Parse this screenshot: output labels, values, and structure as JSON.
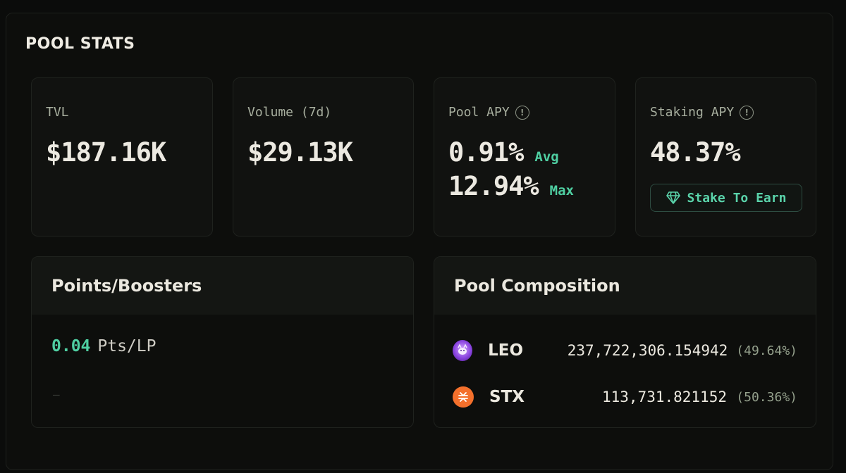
{
  "section_title": "POOL STATS",
  "stats": {
    "tvl": {
      "label": "TVL",
      "value": "$187.16K"
    },
    "volume": {
      "label": "Volume (7d)",
      "value": "$29.13K"
    },
    "pool_apy": {
      "label": "Pool APY",
      "avg_value": "0.91%",
      "avg_tag": "Avg",
      "max_value": "12.94%",
      "max_tag": "Max",
      "info_icon": "info-icon"
    },
    "staking_apy": {
      "label": "Staking APY",
      "value": "48.37%",
      "button_label": "Stake To Earn",
      "button_icon": "gem-icon",
      "info_icon": "info-icon"
    }
  },
  "points": {
    "title": "Points/Boosters",
    "value": "0.04",
    "unit": "Pts/LP",
    "placeholder_mark": "–"
  },
  "composition": {
    "title": "Pool Composition",
    "tokens": [
      {
        "symbol": "LEO",
        "amount": "237,722,306.154942",
        "percent": "(49.64%)",
        "icon": "leo-token-icon"
      },
      {
        "symbol": "STX",
        "amount": "113,731.821152",
        "percent": "(50.36%)",
        "icon": "stx-token-icon"
      }
    ]
  },
  "colors": {
    "accent": "#4fcfa2",
    "background": "#0b0c0b",
    "card": "#111210",
    "leo": "#8a44e0",
    "stx": "#f4702c"
  }
}
